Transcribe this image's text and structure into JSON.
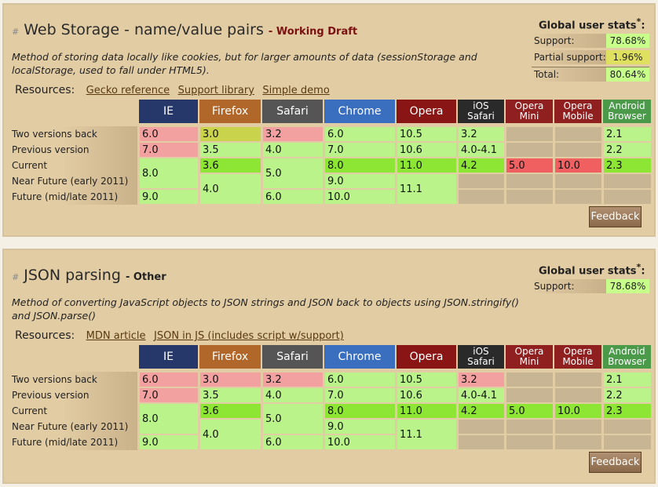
{
  "browsers": [
    {
      "name": "IE",
      "color": "#26386a"
    },
    {
      "name": "Firefox",
      "color": "#b1672a"
    },
    {
      "name": "Safari",
      "color": "#555555"
    },
    {
      "name": "Chrome",
      "color": "#3a6fc0"
    },
    {
      "name": "Opera",
      "color": "#8a1515"
    },
    {
      "name": "iOS Safari",
      "color": "#2a2a2a"
    },
    {
      "name": "Opera Mini",
      "color": "#901f1f"
    },
    {
      "name": "Opera Mobile",
      "color": "#901f1f"
    },
    {
      "name": "Android Browser",
      "color": "#4a9a4a"
    }
  ],
  "row_labels": [
    "Two versions back",
    "Previous version",
    "Current",
    "Near Future (early 2011)",
    "Future (mid/late 2011)"
  ],
  "panels": [
    {
      "hash": "#",
      "title": "Web Storage - name/value pairs",
      "status": "- Working Draft",
      "description": "Method of storing data locally like cookies, but for larger amounts of data (sessionStorage and localStorage, used to fall under HTML5).",
      "stats_title": "Global user stats",
      "stats_star": "*",
      "stats_colon": ":",
      "stats": [
        {
          "label": "Support:",
          "value": "78.68%",
          "color": "#c8ff8a"
        },
        {
          "label": "Partial support:",
          "value": "1.96%",
          "color": "#e0e060"
        },
        {
          "label": "Total:",
          "value": "80.64%",
          "color": "#c8ff8a"
        }
      ],
      "resources_label": "Resources:",
      "links": [
        "Gecko reference",
        "Support library",
        "Simple demo"
      ],
      "feedback": "Feedback",
      "cells": [
        [
          {
            "v": "6.0",
            "s": "n"
          },
          {
            "v": "7.0",
            "s": "n"
          },
          {
            "v": "8.0",
            "s": "y",
            "span": 2
          },
          {
            "v": "9.0",
            "s": "y"
          }
        ],
        [
          {
            "v": "3.0",
            "s": "p"
          },
          {
            "v": "3.5",
            "s": "y"
          },
          {
            "v": "3.6",
            "s": "cur"
          },
          {
            "v": "4.0",
            "s": "y",
            "span": 2
          }
        ],
        [
          {
            "v": "3.2",
            "s": "n"
          },
          {
            "v": "4.0",
            "s": "y"
          },
          {
            "v": "5.0",
            "s": "y",
            "span": 2
          },
          {
            "v": "6.0",
            "s": "y"
          }
        ],
        [
          {
            "v": "6.0",
            "s": "y"
          },
          {
            "v": "7.0",
            "s": "y"
          },
          {
            "v": "8.0",
            "s": "cur"
          },
          {
            "v": "9.0",
            "s": "y"
          },
          {
            "v": "10.0",
            "s": "y"
          }
        ],
        [
          {
            "v": "10.5",
            "s": "y"
          },
          {
            "v": "10.6",
            "s": "y"
          },
          {
            "v": "11.0",
            "s": "cur"
          },
          {
            "v": "11.1",
            "s": "y",
            "span": 2
          }
        ],
        [
          {
            "v": "3.2",
            "s": "y"
          },
          {
            "v": "4.0-4.1",
            "s": "y"
          },
          {
            "v": "4.2",
            "s": "cur"
          },
          {
            "v": "",
            "s": "u"
          },
          {
            "v": "",
            "s": "u"
          }
        ],
        [
          {
            "v": "",
            "s": "u"
          },
          {
            "v": "",
            "s": "u"
          },
          {
            "v": "5.0",
            "s": "nred"
          },
          {
            "v": "",
            "s": "u"
          },
          {
            "v": "",
            "s": "u"
          }
        ],
        [
          {
            "v": "",
            "s": "u"
          },
          {
            "v": "",
            "s": "u"
          },
          {
            "v": "10.0",
            "s": "nred"
          },
          {
            "v": "",
            "s": "u"
          },
          {
            "v": "",
            "s": "u"
          }
        ],
        [
          {
            "v": "2.1",
            "s": "y"
          },
          {
            "v": "2.2",
            "s": "y"
          },
          {
            "v": "2.3",
            "s": "cur"
          },
          {
            "v": "",
            "s": "u"
          },
          {
            "v": "",
            "s": "u"
          }
        ]
      ]
    },
    {
      "hash": "#",
      "title": "JSON parsing",
      "status": "- Other",
      "description": "Method of converting JavaScript objects to JSON strings and JSON back to objects using JSON.stringify() and JSON.parse()",
      "stats_title": "Global user stats",
      "stats_star": "*",
      "stats_colon": ":",
      "stats": [
        {
          "label": "Support:",
          "value": "78.68%",
          "color": "#c8ff8a"
        }
      ],
      "resources_label": "Resources:",
      "links": [
        "MDN article",
        "JSON in JS (includes script w/support)"
      ],
      "feedback": "Feedback",
      "cells": [
        [
          {
            "v": "6.0",
            "s": "n"
          },
          {
            "v": "7.0",
            "s": "n"
          },
          {
            "v": "8.0",
            "s": "y",
            "span": 2
          },
          {
            "v": "9.0",
            "s": "y"
          }
        ],
        [
          {
            "v": "3.0",
            "s": "n"
          },
          {
            "v": "3.5",
            "s": "y"
          },
          {
            "v": "3.6",
            "s": "cur"
          },
          {
            "v": "4.0",
            "s": "y",
            "span": 2
          }
        ],
        [
          {
            "v": "3.2",
            "s": "n"
          },
          {
            "v": "4.0",
            "s": "y"
          },
          {
            "v": "5.0",
            "s": "y",
            "span": 2
          },
          {
            "v": "6.0",
            "s": "y"
          }
        ],
        [
          {
            "v": "6.0",
            "s": "y"
          },
          {
            "v": "7.0",
            "s": "y"
          },
          {
            "v": "8.0",
            "s": "cur"
          },
          {
            "v": "9.0",
            "s": "y"
          },
          {
            "v": "10.0",
            "s": "y"
          }
        ],
        [
          {
            "v": "10.5",
            "s": "y"
          },
          {
            "v": "10.6",
            "s": "y"
          },
          {
            "v": "11.0",
            "s": "cur"
          },
          {
            "v": "11.1",
            "s": "y",
            "span": 2
          }
        ],
        [
          {
            "v": "3.2",
            "s": "n"
          },
          {
            "v": "4.0-4.1",
            "s": "y"
          },
          {
            "v": "4.2",
            "s": "cur"
          },
          {
            "v": "",
            "s": "u"
          },
          {
            "v": "",
            "s": "u"
          }
        ],
        [
          {
            "v": "",
            "s": "u"
          },
          {
            "v": "",
            "s": "u"
          },
          {
            "v": "5.0",
            "s": "cur"
          },
          {
            "v": "",
            "s": "u"
          },
          {
            "v": "",
            "s": "u"
          }
        ],
        [
          {
            "v": "",
            "s": "u"
          },
          {
            "v": "",
            "s": "u"
          },
          {
            "v": "10.0",
            "s": "cur"
          },
          {
            "v": "",
            "s": "u"
          },
          {
            "v": "",
            "s": "u"
          }
        ],
        [
          {
            "v": "2.1",
            "s": "y"
          },
          {
            "v": "2.2",
            "s": "y"
          },
          {
            "v": "2.3",
            "s": "cur"
          },
          {
            "v": "",
            "s": "u"
          },
          {
            "v": "",
            "s": "u"
          }
        ]
      ]
    }
  ]
}
